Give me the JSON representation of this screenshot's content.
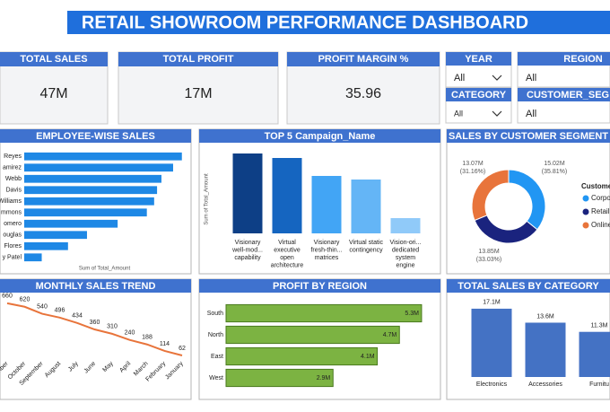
{
  "title": "RETAIL SHOWROOM PERFORMANCE DASHBOARD",
  "kpis": [
    {
      "label": "TOTAL SALES",
      "value": "47M"
    },
    {
      "label": "TOTAL PROFIT",
      "value": "17M"
    },
    {
      "label": "PROFIT MARGIN %",
      "value": "35.96"
    }
  ],
  "slicers": [
    {
      "label": "YEAR",
      "value": "All"
    },
    {
      "label": "REGION",
      "value": "All"
    },
    {
      "label": "CATEGORY",
      "value": "All"
    },
    {
      "label": "CUSTOMER_SEG",
      "value": "All"
    }
  ],
  "chart_data": [
    {
      "type": "bar",
      "horizontal": true,
      "title": "EMPLOYEE-WISE SALES",
      "x_label": "Sum of Total_Amount",
      "categories": [
        "Reyes",
        "amirez",
        "Webb",
        "Davis",
        "Williams",
        "mmons",
        "omero",
        "ouglas",
        "Flores",
        "y Patel"
      ],
      "values": [
        5.4,
        5.1,
        4.7,
        4.55,
        4.45,
        4.2,
        3.2,
        2.15,
        1.5,
        0.6
      ],
      "color": "#1e88e5",
      "xlim": [
        0,
        5.5
      ]
    },
    {
      "type": "bar",
      "title": "TOP 5 Campaign_Name",
      "y_label": "Sum of Total_Amount",
      "categories": [
        [
          "Visionary",
          "well-mod...",
          "capability"
        ],
        [
          "Virtual",
          "executive",
          "open",
          "architecture"
        ],
        [
          "Visionary",
          "fresh-thin...",
          "matrices"
        ],
        [
          "Virtual static",
          "contingency"
        ],
        [
          "Vision-ori...",
          "dedicated",
          "system",
          "engine"
        ]
      ],
      "values": [
        4.45,
        4.2,
        3.2,
        3.0,
        0.85
      ],
      "colors": [
        "#0d3f86",
        "#1565c0",
        "#42a5f5",
        "#64b5f6",
        "#90caf9"
      ],
      "ylim": [
        0,
        5
      ]
    },
    {
      "type": "pie",
      "donut": true,
      "title": "SALES BY CUSTOMER SEGMENT",
      "legend_title": "Custome",
      "categories": [
        "Corpo",
        "Retail",
        "Online"
      ],
      "values": [
        15.02,
        13.85,
        13.07
      ],
      "value_labels": [
        "15.02M",
        "13.85M",
        "13.07M"
      ],
      "percent_labels": [
        "(35.81%)",
        "(33.03%)",
        "(31.16%)"
      ],
      "colors": [
        "#2196f3",
        "#1a237e",
        "#e8743b"
      ]
    },
    {
      "type": "line",
      "title": "MONTHLY SALES TREND",
      "categories": [
        "November",
        "October",
        "September",
        "August",
        "July",
        "June",
        "May",
        "April",
        "March",
        "February",
        "January"
      ],
      "values": [
        660,
        620,
        540,
        496,
        434,
        360,
        310,
        240,
        188,
        114,
        62
      ],
      "color": "#e8743b",
      "ylim": [
        0,
        700
      ]
    },
    {
      "type": "bar",
      "horizontal": true,
      "title": "PROFIT BY REGION",
      "categories": [
        "South",
        "North",
        "East",
        "West"
      ],
      "values": [
        5.3,
        4.7,
        4.1,
        2.9
      ],
      "value_labels": [
        "5.3M",
        "4.7M",
        "4.1M",
        "2.9M"
      ],
      "color": "#7cb342",
      "xlim": [
        0,
        5.35
      ]
    },
    {
      "type": "bar",
      "title": "TOTAL SALES BY CATEGORY",
      "categories": [
        "Electronics",
        "Accessories",
        "Furnitu"
      ],
      "values": [
        17.1,
        13.6,
        11.3
      ],
      "value_labels": [
        "17.1M",
        "13.6M",
        "11.3M"
      ],
      "color": "#4472c4",
      "ylim": [
        0,
        20
      ]
    }
  ]
}
